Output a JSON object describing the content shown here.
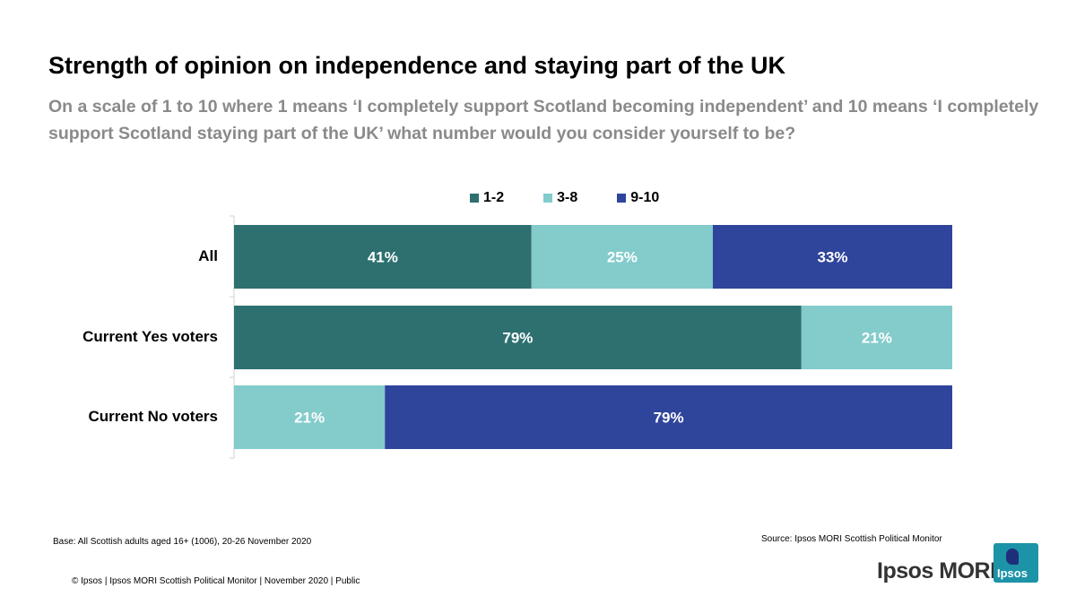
{
  "header": {
    "title": "Strength of opinion on independence and staying part of the UK",
    "subtitle": "On a scale of 1 to 10 where 1 means ‘I completely support Scotland becoming independent’ and 10 means ‘I completely support Scotland staying part of the UK’ what number would you consider yourself to be?"
  },
  "chart_data": {
    "type": "bar",
    "orientation": "horizontal",
    "stacked": true,
    "categories": [
      "All",
      "Current Yes voters",
      "Current No voters"
    ],
    "series": [
      {
        "name": "1-2",
        "values": [
          41,
          79,
          0
        ],
        "color": "#2e7070"
      },
      {
        "name": "3-8",
        "values": [
          25,
          21,
          21
        ],
        "color": "#84cbcb"
      },
      {
        "name": "9-10",
        "values": [
          33,
          0,
          79
        ],
        "color": "#2f449b"
      }
    ],
    "data_labels": [
      [
        "41%",
        "79%",
        ""
      ],
      [
        "25%",
        "21%",
        "21%"
      ],
      [
        "33%",
        "",
        "79%"
      ]
    ],
    "label_colors": {
      "on_dark": "#ffffff",
      "on_light": "#ffffff"
    },
    "legend_position": "top",
    "grid": false,
    "xlim": [
      0,
      100
    ]
  },
  "footer": {
    "base": "Base: All Scottish adults aged 16+ (1006), 20-26 November 2020",
    "source": "Source: Ipsos MORI Scottish Political Monitor",
    "copyright": "© Ipsos | Ipsos MORI  Scottish Political Monitor | November 2020 | Public",
    "brand": "Ipsos MORI",
    "logo_text": "Ipsos"
  }
}
